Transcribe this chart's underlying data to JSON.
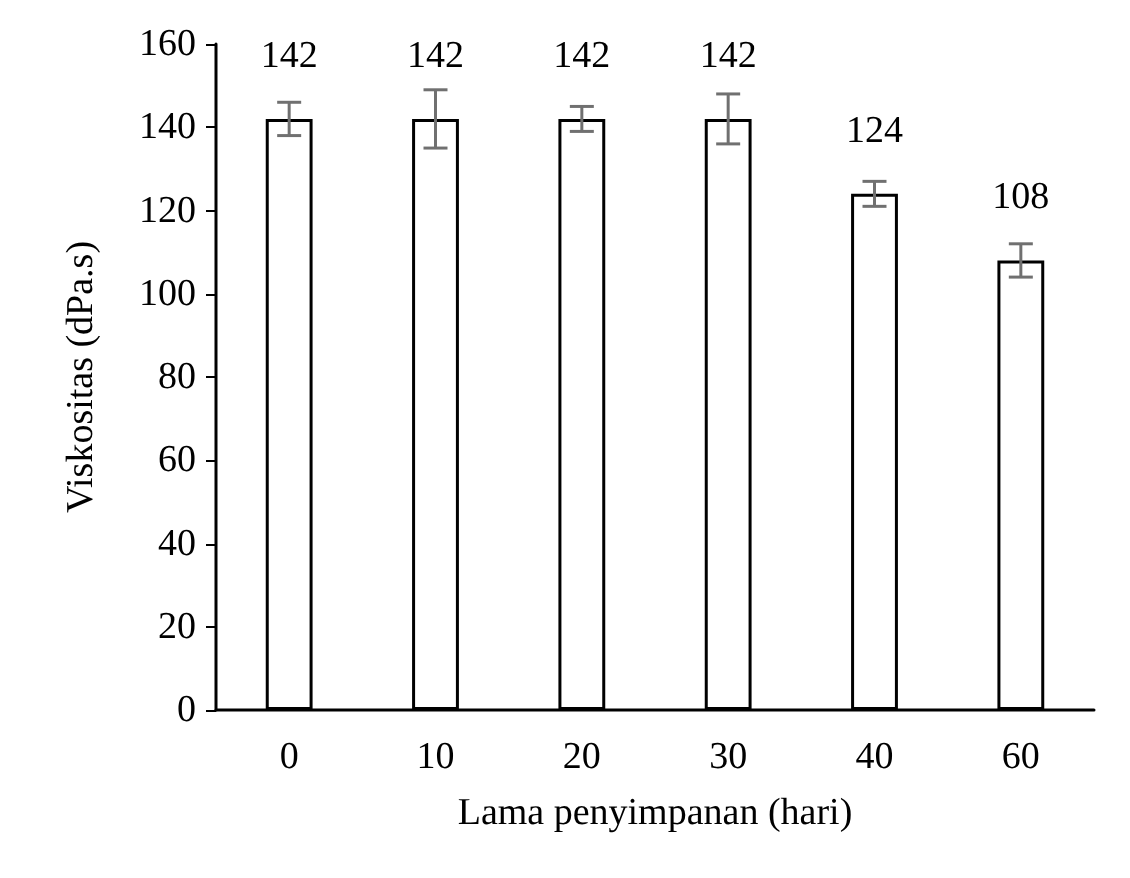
{
  "chart_data": {
    "type": "bar",
    "xlabel": "Lama penyimpanan (hari)",
    "ylabel": "Viskositas (dPa.s)",
    "categories": [
      "0",
      "10",
      "20",
      "30",
      "40",
      "60"
    ],
    "values": [
      142,
      142,
      142,
      142,
      124,
      108
    ],
    "errors": [
      4,
      7,
      3,
      6,
      3,
      4
    ],
    "color": "#ffffff",
    "ylim": [
      0,
      160
    ],
    "yticks": [
      0,
      20,
      40,
      60,
      80,
      100,
      120,
      140,
      160
    ],
    "data_labels": true,
    "grid": false
  }
}
